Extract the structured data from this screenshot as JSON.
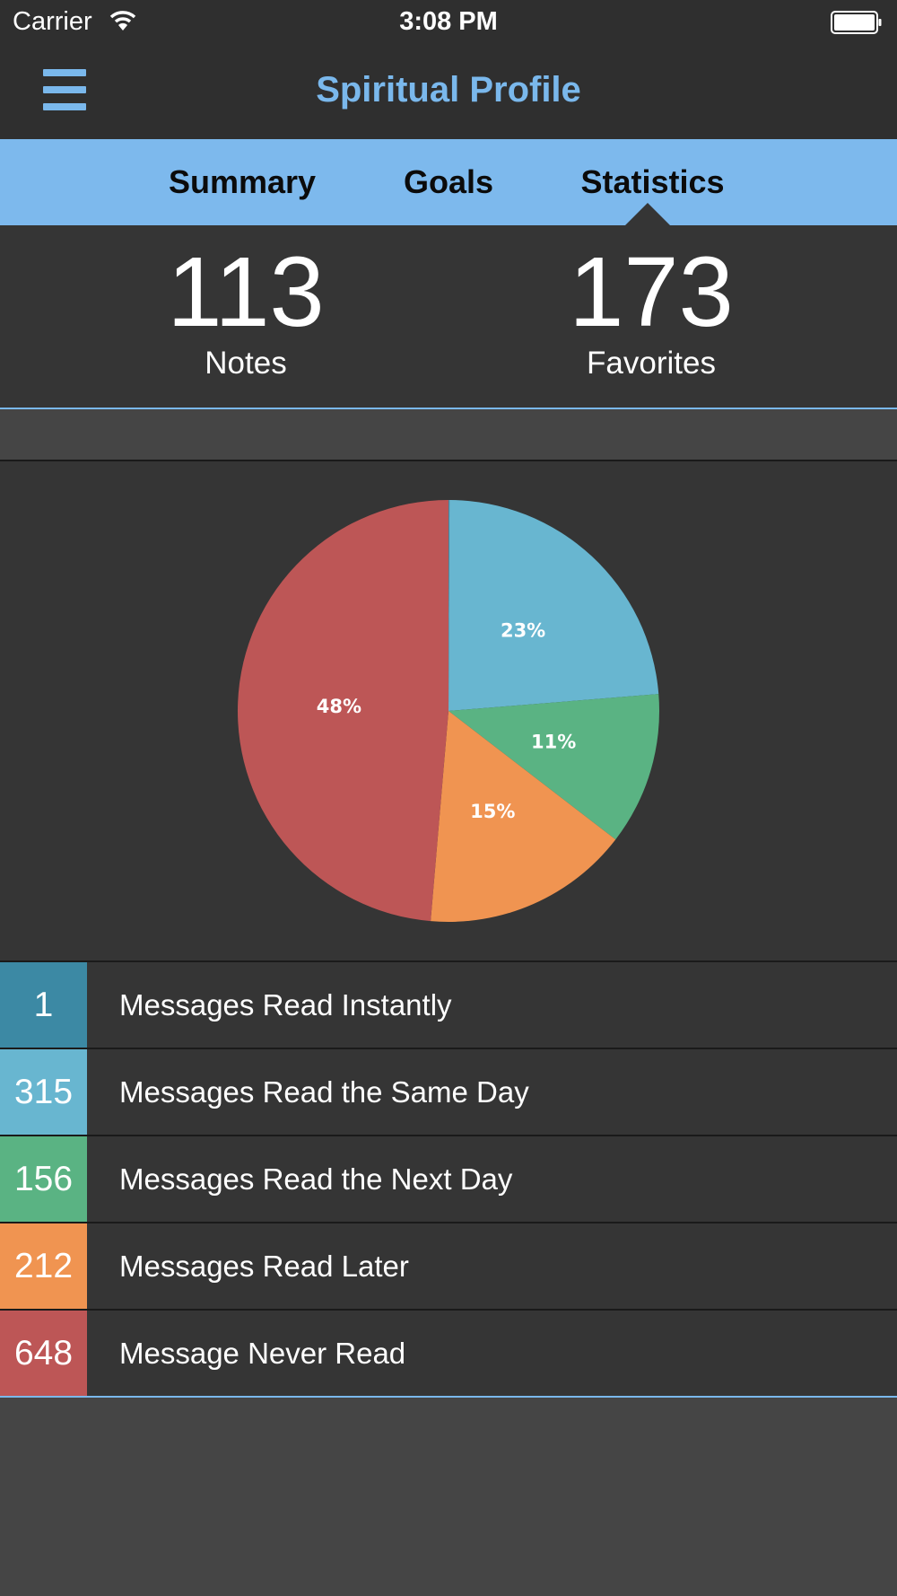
{
  "status_bar": {
    "carrier": "Carrier",
    "time": "3:08 PM",
    "icons": [
      "wifi-icon",
      "battery-icon"
    ]
  },
  "nav": {
    "title": "Spiritual Profile",
    "menu_icon": "hamburger-menu-icon"
  },
  "tabs": [
    {
      "label": "Summary",
      "selected": false
    },
    {
      "label": "Goals",
      "selected": false
    },
    {
      "label": "Statistics",
      "selected": true
    }
  ],
  "counts": {
    "notes": {
      "value": "113",
      "label": "Notes"
    },
    "favorites": {
      "value": "173",
      "label": "Favorites"
    }
  },
  "colors": {
    "accent": "#7ab8ec",
    "instant": "#3c89a4",
    "same_day": "#68b6d0",
    "next_day": "#5ab383",
    "later": "#f09451",
    "never": "#bd5656"
  },
  "chart_data": {
    "type": "pie",
    "slices": [
      {
        "value": 1,
        "label": "",
        "color": "#3c89a4"
      },
      {
        "value": 315,
        "label": "23%",
        "color": "#68b6d0"
      },
      {
        "value": 156,
        "label": "11%",
        "color": "#5ab383"
      },
      {
        "value": 212,
        "label": "15%",
        "color": "#f09451"
      },
      {
        "value": 648,
        "label": "48%",
        "color": "#bd5656"
      }
    ]
  },
  "legend": [
    {
      "count": "1",
      "label": "Messages Read Instantly",
      "color": "#3c89a4"
    },
    {
      "count": "315",
      "label": "Messages Read the Same Day",
      "color": "#68b6d0"
    },
    {
      "count": "156",
      "label": "Messages Read the Next Day",
      "color": "#5ab383"
    },
    {
      "count": "212",
      "label": "Messages Read Later",
      "color": "#f09451"
    },
    {
      "count": "648",
      "label": "Message Never Read",
      "color": "#bd5656"
    }
  ]
}
